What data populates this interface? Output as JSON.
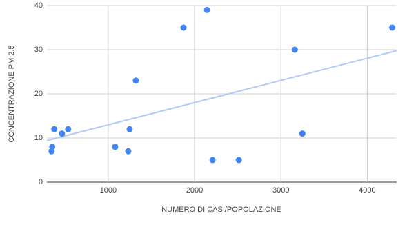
{
  "chart_data": {
    "type": "scatter",
    "xlabel": "NUMERO DI CASI/POPOLAZIONE",
    "ylabel": "CONCENTRAZIONE PM 2.5",
    "series": [
      {
        "color": "#4285f4",
        "x": [
          344,
          352,
          376,
          464,
          536,
          1080,
          1232,
          1248,
          1320,
          1872,
          2144,
          2208,
          2512,
          3160,
          3248,
          4288
        ],
        "values": [
          7,
          8,
          12,
          11,
          12,
          8,
          7,
          12,
          23,
          35,
          39,
          5,
          5,
          30,
          11,
          35
        ]
      }
    ],
    "trendline": {
      "type": "linear",
      "color": "#aecbf3"
    },
    "xlim": [
      290,
      4340
    ],
    "xticks": [
      1000,
      2000,
      3000,
      4000
    ],
    "ylim": [
      0,
      40
    ],
    "yticks": [
      0,
      10,
      20,
      30,
      40
    ],
    "grid": true
  }
}
